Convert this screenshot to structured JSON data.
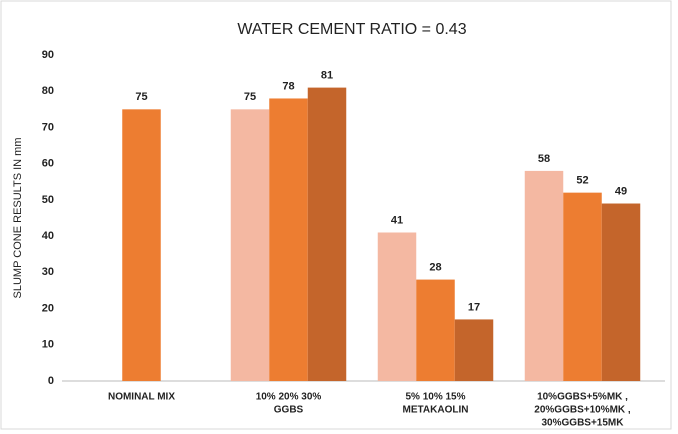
{
  "chart_data": {
    "type": "bar",
    "title": "WATER CEMENT RATIO = 0.43",
    "y_label": "SLUMP CONE RESULTS IN mm",
    "categories": [
      [
        "NOMINAL MIX"
      ],
      [
        "10% 20% 30%",
        "GGBS"
      ],
      [
        "5% 10% 15%",
        "METAKAOLIN"
      ],
      [
        "10%GGBS+5%MK ,",
        "20%GGBS+10%MK ,",
        "30%GGBS+15MK"
      ]
    ],
    "series": [
      {
        "color": "#f4b8a2",
        "values": [
          null,
          75,
          41,
          58
        ]
      },
      {
        "color": "#ed7d31",
        "values": [
          75,
          78,
          28,
          52
        ]
      },
      {
        "color": "#c4652b",
        "values": [
          null,
          81,
          17,
          49
        ]
      }
    ],
    "ylim": [
      0,
      90
    ],
    "yticks": [
      0,
      10,
      20,
      30,
      40,
      50,
      60,
      70,
      80,
      90
    ],
    "grid": false
  }
}
